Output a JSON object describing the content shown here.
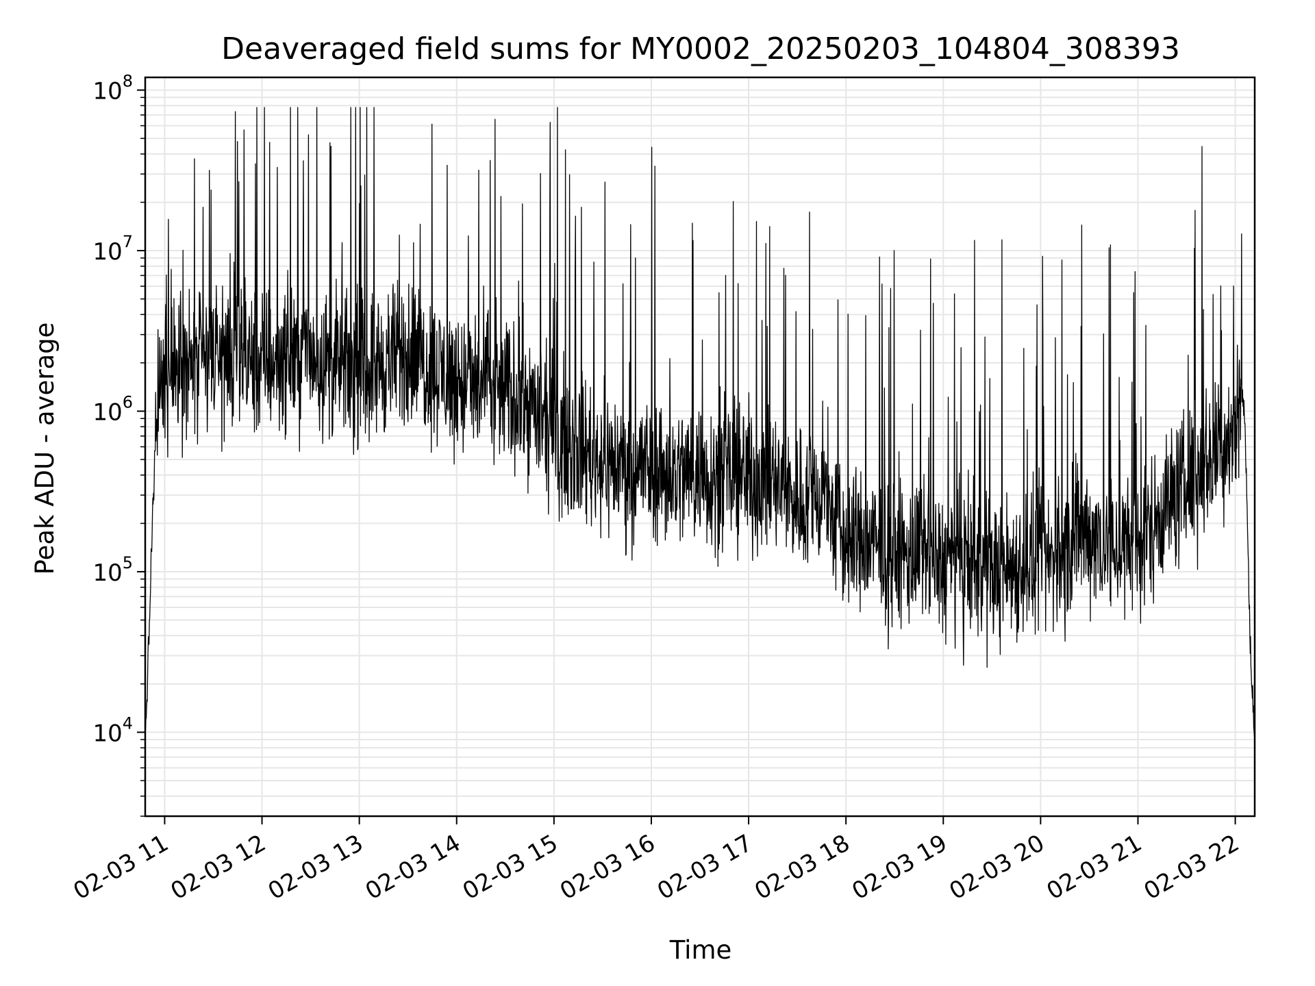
{
  "chart_data": {
    "type": "line",
    "title": "Deaveraged field sums for MY0002_20250203_104804_308393",
    "xlabel": "Time",
    "ylabel": "Peak ADU - average",
    "yscale": "log",
    "ylim": [
      3000,
      120000000
    ],
    "xlim": [
      "02-03 10:48",
      "02-03 22:12"
    ],
    "grid": true,
    "line_color": "#000000",
    "grid_color": "#e6e6e6",
    "x_ticks": [
      {
        "value": "02-03 11:00",
        "label": "02-03 11"
      },
      {
        "value": "02-03 12:00",
        "label": "02-03 12"
      },
      {
        "value": "02-03 13:00",
        "label": "02-03 13"
      },
      {
        "value": "02-03 14:00",
        "label": "02-03 14"
      },
      {
        "value": "02-03 15:00",
        "label": "02-03 15"
      },
      {
        "value": "02-03 16:00",
        "label": "02-03 16"
      },
      {
        "value": "02-03 17:00",
        "label": "02-03 17"
      },
      {
        "value": "02-03 18:00",
        "label": "02-03 18"
      },
      {
        "value": "02-03 19:00",
        "label": "02-03 19"
      },
      {
        "value": "02-03 20:00",
        "label": "02-03 20"
      },
      {
        "value": "02-03 21:00",
        "label": "02-03 21"
      },
      {
        "value": "02-03 22:00",
        "label": "02-03 22"
      }
    ],
    "y_ticks": [
      {
        "value": 10000,
        "base": "10",
        "exp": "4"
      },
      {
        "value": 100000,
        "base": "10",
        "exp": "5"
      },
      {
        "value": 1000000,
        "base": "10",
        "exp": "6"
      },
      {
        "value": 10000000,
        "base": "10",
        "exp": "7"
      },
      {
        "value": 100000000,
        "base": "10",
        "exp": "8"
      }
    ],
    "series": [
      {
        "x": [
          "02-03 10:48",
          "02-03 10:50",
          "02-03 10:52",
          "02-03 10:54",
          "02-03 10:56",
          "02-03 11:00",
          "02-03 11:10",
          "02-03 11:20",
          "02-03 11:30",
          "02-03 11:45",
          "02-03 12:00",
          "02-03 12:15",
          "02-03 12:30",
          "02-03 12:45",
          "02-03 13:00",
          "02-03 13:15",
          "02-03 13:30",
          "02-03 13:45",
          "02-03 14:00",
          "02-03 14:15",
          "02-03 14:30",
          "02-03 14:45",
          "02-03 15:00",
          "02-03 15:15",
          "02-03 15:30",
          "02-03 15:45",
          "02-03 16:00",
          "02-03 16:15",
          "02-03 16:30",
          "02-03 16:45",
          "02-03 17:00",
          "02-03 17:15",
          "02-03 17:30",
          "02-03 17:45",
          "02-03 18:00",
          "02-03 18:15",
          "02-03 18:30",
          "02-03 18:45",
          "02-03 19:00",
          "02-03 19:15",
          "02-03 19:30",
          "02-03 19:45",
          "02-03 20:00",
          "02-03 20:15",
          "02-03 20:30",
          "02-03 20:45",
          "02-03 21:00",
          "02-03 21:15",
          "02-03 21:30",
          "02-03 21:45",
          "02-03 22:00",
          "02-03 22:03",
          "02-03 22:06",
          "02-03 22:09",
          "02-03 22:12"
        ],
        "y": [
          9000,
          30000,
          150000,
          500000,
          1100000,
          1500000,
          2000000,
          1800000,
          2200000,
          2100000,
          2000000,
          2200000,
          2300000,
          1900000,
          1800000,
          2000000,
          2300000,
          1900000,
          1500000,
          1400000,
          1300000,
          1100000,
          700000,
          600000,
          500000,
          450000,
          450000,
          400000,
          420000,
          380000,
          400000,
          350000,
          280000,
          300000,
          150000,
          150000,
          120000,
          130000,
          110000,
          110000,
          100000,
          110000,
          110000,
          130000,
          180000,
          140000,
          140000,
          250000,
          350000,
          500000,
          800000,
          1500000,
          900000,
          40000,
          8000
        ]
      }
    ]
  }
}
